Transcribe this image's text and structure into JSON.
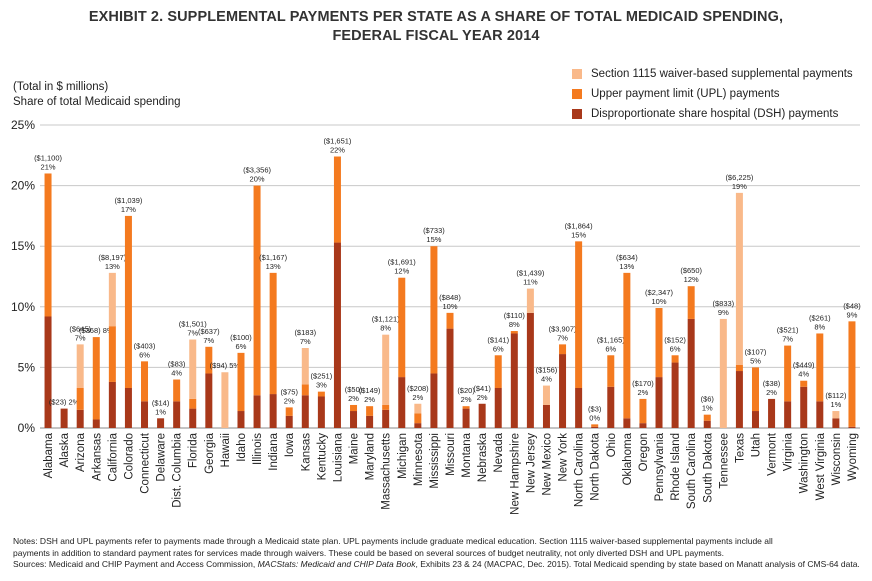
{
  "chart_data": {
    "type": "bar",
    "stacked": true,
    "title_line1": "EXHIBIT 2. SUPPLEMENTAL PAYMENTS PER STATE AS A SHARE OF TOTAL MEDICAID SPENDING,",
    "title_line2": "FEDERAL FISCAL YEAR 2014",
    "unit_note_1": "(Total in $ millions)",
    "unit_note_2": "Share of total Medicaid spending",
    "ylim": [
      0,
      25
    ],
    "yticks": [
      "0%",
      "5%",
      "10%",
      "15%",
      "20%",
      "25%"
    ],
    "legend": [
      {
        "name": "Section 1115 waiver-based supplemental payments",
        "color": "#f9b98a"
      },
      {
        "name": "Upper payment limit (UPL) payments",
        "color": "#f47a1f"
      },
      {
        "name": "Disproportionate share hospital (DSH) payments",
        "color": "#a8381a"
      }
    ],
    "series_colors": {
      "s1115": "#f9b98a",
      "upl": "#f47a1f",
      "dsh": "#a8381a"
    },
    "categories": [
      "Alabama",
      "Alaska",
      "Arizona",
      "Arkansas",
      "California",
      "Colorado",
      "Connecticut",
      "Delaware",
      "Dist. Columbia",
      "Florida",
      "Georgia",
      "Hawaii",
      "Idaho",
      "Illinois",
      "Indiana",
      "Iowa",
      "Kansas",
      "Kentucky",
      "Louisiana",
      "Maine",
      "Maryland",
      "Massachusetts",
      "Michigan",
      "Minnesota",
      "Mississippi",
      "Missouri",
      "Montana",
      "Nebraska",
      "Nevada",
      "New Hampshire",
      "New Jersey",
      "New Mexico",
      "New York",
      "North Carolina",
      "North Dakota",
      "Ohio",
      "Oklahoma",
      "Oregon",
      "Pennsylvania",
      "Rhode Island",
      "South Carolina",
      "South Dakota",
      "Tennessee",
      "Texas",
      "Utah",
      "Vermont",
      "Virginia",
      "Washington",
      "West Virginia",
      "Wisconsin",
      "Wyoming"
    ],
    "dsh": [
      9.2,
      1.6,
      1.5,
      0.7,
      3.8,
      3.3,
      2.2,
      0.8,
      2.2,
      1.6,
      4.5,
      0,
      1.4,
      2.7,
      2.8,
      1.0,
      2.7,
      2.6,
      15.3,
      1.4,
      1.0,
      1.5,
      4.2,
      0.4,
      4.5,
      8.2,
      1.6,
      2.0,
      3.3,
      7.8,
      9.5,
      1.9,
      6.1,
      3.3,
      0.1,
      3.4,
      0.8,
      0.4,
      4.2,
      5.4,
      9.0,
      0.6,
      0,
      4.7,
      1.4,
      2.4,
      2.2,
      3.4,
      2.2,
      0.8,
      0.1
    ],
    "upl": [
      11.8,
      0,
      1.8,
      6.8,
      4.6,
      14.2,
      3.3,
      0,
      1.8,
      0.8,
      2.2,
      0,
      4.8,
      17.3,
      10.0,
      0.7,
      0.9,
      0.4,
      7.1,
      0.5,
      0.8,
      0.4,
      8.2,
      0.8,
      10.5,
      1.3,
      0.2,
      0,
      2.7,
      0.2,
      0,
      0,
      0.8,
      12.1,
      0.2,
      2.6,
      12.0,
      2.0,
      5.7,
      0.6,
      2.7,
      0.5,
      0,
      0.5,
      3.6,
      0,
      4.6,
      0.5,
      5.6,
      0,
      8.7
    ],
    "s1115": [
      0,
      0,
      3.6,
      0,
      4.4,
      0,
      0,
      0,
      0,
      4.9,
      0,
      4.6,
      0,
      0,
      0,
      0,
      3.0,
      0,
      0,
      0,
      0,
      5.8,
      0,
      0.8,
      0,
      0,
      0,
      0,
      0,
      0,
      2.0,
      1.6,
      0,
      0,
      0,
      0,
      0,
      0,
      0,
      0,
      0,
      0,
      9.0,
      14.2,
      0,
      0,
      0,
      0,
      0,
      0.6,
      0
    ],
    "labels_total": [
      "($1,100)",
      "($23)",
      "($645)",
      "($368)",
      "($8,197)",
      "($1,039)",
      "($403)",
      "($14)",
      "($83)",
      "($1,501)",
      "($637)",
      "($94)",
      "($100)",
      "($3,356)",
      "($1,167)",
      "($75)",
      "($183)",
      "($251)",
      "($1,651)",
      "($50)",
      "($149)",
      "($1,121)",
      "($1,691)",
      "($208)",
      "($733)",
      "($848)",
      "($20)",
      "($41)",
      "($141)",
      "($110)",
      "($1,439)",
      "($156)",
      "($3,907)",
      "($1,864)",
      "($3)",
      "($1,165)",
      "($634)",
      "($170)",
      "($2,347)",
      "($152)",
      "($650)",
      "($6)",
      "($833)",
      "($6,225)",
      "($107)",
      "($38)",
      "($521)",
      "($449)",
      "($261)",
      "($112)",
      "($48)"
    ],
    "labels_pct": [
      "21%",
      "2%",
      "7%",
      "8%",
      "13%",
      "17%",
      "6%",
      "1%",
      "4%",
      "7%",
      "7%",
      "5%",
      "6%",
      "20%",
      "13%",
      "2%",
      "7%",
      "3%",
      "22%",
      "2%",
      "2%",
      "8%",
      "12%",
      "2%",
      "15%",
      "10%",
      "2%",
      "2%",
      "6%",
      "8%",
      "11%",
      "4%",
      "7%",
      "15%",
      "0%",
      "6%",
      "13%",
      "2%",
      "10%",
      "6%",
      "12%",
      "1%",
      "9%",
      "19%",
      "5%",
      "2%",
      "7%",
      "4%",
      "8%",
      "1%",
      "9%"
    ],
    "label_inline": [
      false,
      true,
      false,
      true,
      false,
      false,
      false,
      false,
      false,
      false,
      false,
      true,
      false,
      false,
      false,
      false,
      false,
      false,
      false,
      false,
      false,
      false,
      false,
      false,
      false,
      false,
      false,
      false,
      false,
      false,
      false,
      false,
      false,
      false,
      false,
      false,
      false,
      false,
      false,
      false,
      false,
      false,
      false,
      false,
      false,
      false,
      false,
      false,
      false,
      false,
      false
    ]
  },
  "notes": {
    "line1": "Notes: DSH and UPL payments refer to payments made through a Medicaid state plan. UPL payments include graduate medical education. Section 1115 waiver-based supplemental payments include all",
    "line2": "payments in addition to standard payment rates for services made through waivers. These could be based on several sources of budget neutrality, not only diverted DSH and UPL payments.",
    "line3_a": "Sources: Medicaid and CHIP Payment and Access Commission, ",
    "line3_b": "MACStats: Medicaid and CHIP Data Book",
    "line3_c": ", Exhibits 23 & 24 (MACPAC, Dec. 2015). Total Medicaid spending by state based on Manatt analysis of CMS-64 data."
  }
}
